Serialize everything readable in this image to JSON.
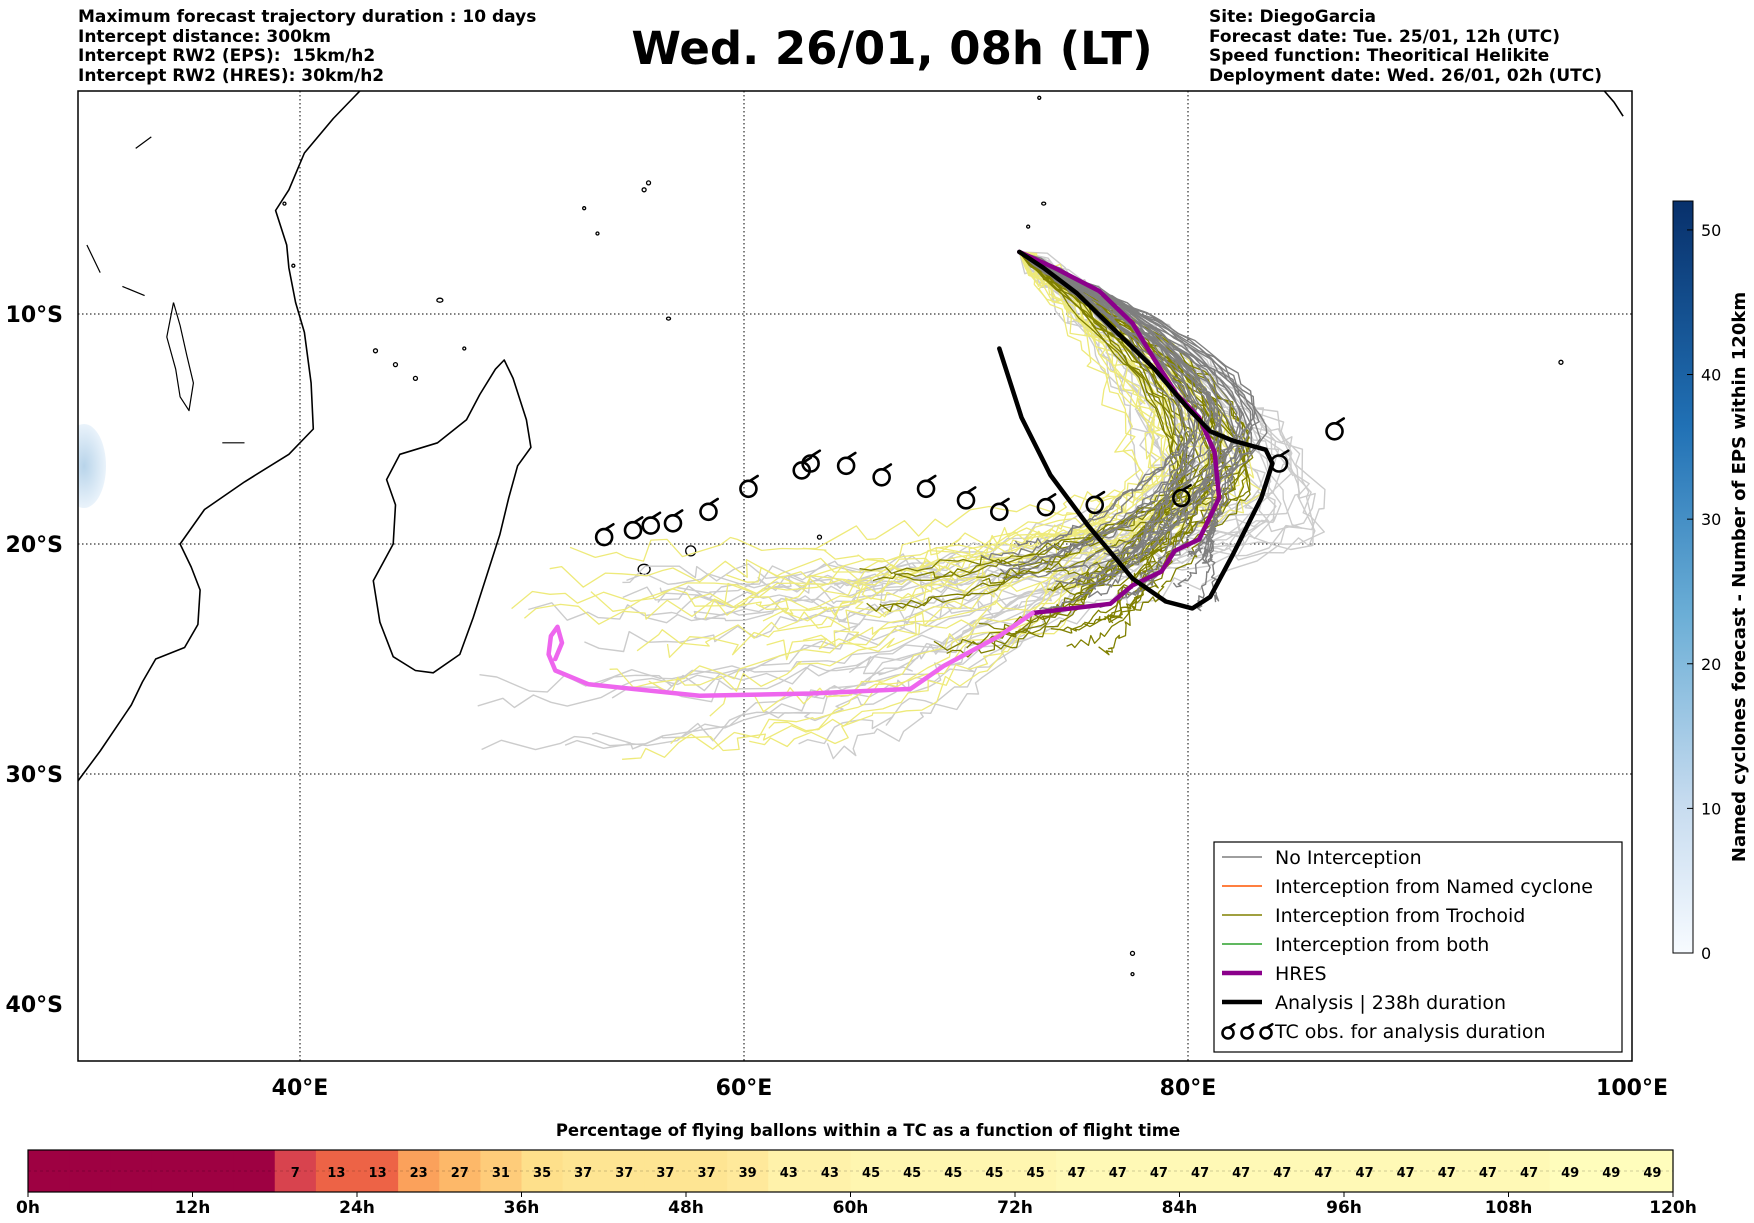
{
  "header": {
    "left": [
      "Maximum forecast trajectory duration : 10 days",
      "Intercept distance: 300km",
      "Intercept RW2 (EPS):  15km/h2",
      "Intercept RW2 (HRES): 30km/h2"
    ],
    "title": "Wed. 26/01, 08h (LT)",
    "right": [
      "Site: DiegoGarcia",
      "Forecast date: Tue. 25/01, 12h (UTC)",
      "Speed function: Theoritical Helikite",
      "Deployment date: Wed. 26/01, 02h (UTC)"
    ]
  },
  "colors": {
    "no_interception": "#7f7f7f",
    "light_gray": "#cccccc",
    "trochoid": "#808000",
    "pale_yellow": "#eeea7a",
    "named_cyclone": "#ff5500",
    "both": "#2ca02c",
    "hres": "#8b008b",
    "hres_early": "#ee66ee",
    "analysis": "#000000"
  },
  "chart_data": [
    {
      "type": "line",
      "subtype": "trajectory-map",
      "xlabel": "",
      "ylabel": "",
      "xlim": [
        30,
        100
      ],
      "ylim": [
        -40,
        0.2
      ],
      "x_ticks": [
        40,
        60,
        80,
        100
      ],
      "x_tick_labels": [
        "40°E",
        "60°E",
        "80°E",
        "100°E"
      ],
      "y_ticks": [
        -10,
        -20,
        -30,
        -40
      ],
      "y_tick_labels": [
        "10°S",
        "20°S",
        "30°S",
        "40°S"
      ],
      "grid": true,
      "legend_position": "bottom-right",
      "legend": [
        {
          "label": "No Interception",
          "color": "#7f7f7f",
          "style": "thin"
        },
        {
          "label": "Interception from Named cyclone",
          "color": "#ff5500",
          "style": "thin"
        },
        {
          "label": "Interception from Trochoid",
          "color": "#808000",
          "style": "thin"
        },
        {
          "label": "Interception from both",
          "color": "#2ca02c",
          "style": "thin"
        },
        {
          "label": "HRES",
          "color": "#8b008b",
          "style": "thick"
        },
        {
          "label": "Analysis | 238h duration",
          "color": "#000000",
          "style": "thick"
        },
        {
          "label": "TC obs. for analysis duration",
          "color": "#000000",
          "style": "tc-symbol"
        }
      ],
      "deployment_site": {
        "lon": 72.4,
        "lat": -7.3
      },
      "hres_track": [
        [
          72.4,
          -7.3
        ],
        [
          74,
          -8
        ],
        [
          76,
          -9
        ],
        [
          77.5,
          -10.4
        ],
        [
          78.5,
          -12
        ],
        [
          79.5,
          -13.5
        ],
        [
          80.5,
          -14.5
        ],
        [
          81.2,
          -16
        ],
        [
          81.4,
          -18
        ],
        [
          80.5,
          -19.8
        ],
        [
          79.4,
          -20.3
        ],
        [
          78.8,
          -21.2
        ],
        [
          77.5,
          -21.8
        ],
        [
          76.5,
          -22.6
        ],
        [
          73,
          -23
        ],
        [
          71.5,
          -24
        ],
        [
          69,
          -25.3
        ],
        [
          67.5,
          -26.3
        ],
        [
          63,
          -26.5
        ],
        [
          58,
          -26.6
        ],
        [
          53,
          -26.1
        ],
        [
          51.5,
          -25.5
        ],
        [
          51.2,
          -24.8
        ],
        [
          51.3,
          -24
        ],
        [
          51.6,
          -23.6
        ],
        [
          51.8,
          -24.3
        ],
        [
          51.5,
          -25
        ]
      ],
      "hres_color_change_lon": 73,
      "analysis_track": [
        [
          71.5,
          -11.5
        ],
        [
          72.5,
          -14.5
        ],
        [
          73.8,
          -17
        ],
        [
          75.5,
          -19.2
        ],
        [
          77.5,
          -21.5
        ],
        [
          79,
          -22.5
        ],
        [
          80.2,
          -22.8
        ],
        [
          81,
          -22.3
        ],
        [
          82,
          -20.5
        ],
        [
          83.3,
          -18
        ],
        [
          83.8,
          -16.5
        ],
        [
          83.5,
          -15.9
        ],
        [
          82,
          -15.5
        ],
        [
          81,
          -15.1
        ],
        [
          80,
          -14.1
        ],
        [
          78.5,
          -12.4
        ],
        [
          76.7,
          -10.7
        ],
        [
          75,
          -9.1
        ],
        [
          73.5,
          -8
        ],
        [
          72.4,
          -7.3
        ]
      ],
      "tc_observations": [
        [
          53.7,
          -19.7
        ],
        [
          55,
          -19.4
        ],
        [
          55.8,
          -19.2
        ],
        [
          56.8,
          -19.1
        ],
        [
          58.4,
          -18.6
        ],
        [
          60.2,
          -17.6
        ],
        [
          62.6,
          -16.8
        ],
        [
          63,
          -16.5
        ],
        [
          64.6,
          -16.6
        ],
        [
          66.2,
          -17.1
        ],
        [
          68.2,
          -17.6
        ],
        [
          70,
          -18.1
        ],
        [
          71.5,
          -18.6
        ],
        [
          73.6,
          -18.4
        ],
        [
          75.8,
          -18.3
        ],
        [
          79.7,
          -18
        ],
        [
          84.1,
          -16.5
        ],
        [
          86.6,
          -15.1
        ]
      ]
    },
    {
      "type": "heatmap",
      "subtype": "colorbar",
      "ylabel": "Named cyclones forecast - Number of EPS within 120km",
      "ylim": [
        0,
        52
      ],
      "ticks": [
        0,
        10,
        20,
        30,
        40,
        50
      ],
      "colormap": "Blues"
    },
    {
      "type": "bar",
      "subtype": "color-strip",
      "title": "Percentage of flying ballons within a TC as a function of flight time",
      "xlim": [
        0,
        120
      ],
      "bin_hours": 3,
      "tick_labels": [
        "0h",
        "12h",
        "24h",
        "36h",
        "48h",
        "60h",
        "72h",
        "84h",
        "96h",
        "108h",
        "120h"
      ],
      "values": [
        0,
        0,
        0,
        0,
        0,
        0,
        7,
        13,
        13,
        23,
        27,
        31,
        35,
        37,
        37,
        37,
        37,
        39,
        43,
        43,
        45,
        45,
        45,
        45,
        45,
        47,
        47,
        47,
        47,
        47,
        47,
        47,
        47,
        47,
        47,
        47,
        47,
        49,
        49,
        49
      ],
      "vmax": 50
    }
  ]
}
